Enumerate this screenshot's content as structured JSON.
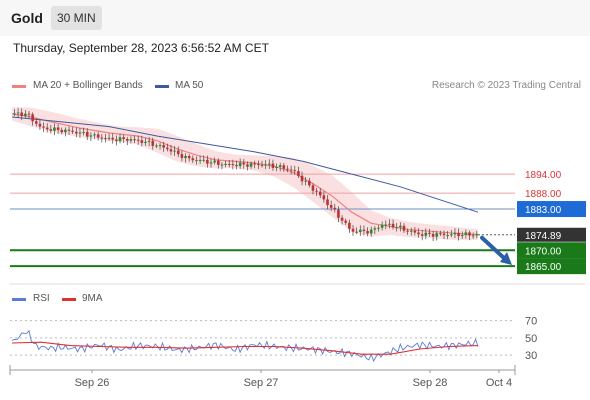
{
  "header": {
    "symbol": "Gold",
    "timeframe": "30 MIN"
  },
  "datetime": "Thursday, September 28, 2023 6:56:52 AM CET",
  "legend": {
    "ma20_label": "MA 20 + Bollinger Bands",
    "ma50_label": "MA 50",
    "copyright": "Research © 2023 Trading Central",
    "rsi_label": "RSI",
    "rsi_ma_label": "9MA"
  },
  "colors": {
    "ma20": "#f08080",
    "ma50": "#3d5a9e",
    "band": "#fadadd",
    "resistance": "#dd3333",
    "pivot": "#1e6bd6",
    "support": "#1a7a1a",
    "last": "#333333",
    "rsi": "#5a7bd8",
    "rsi_ma": "#e03030",
    "up": "#2a8a2a",
    "down": "#c03030"
  },
  "chart_data": [
    {
      "type": "candlestick",
      "title": "Gold",
      "timeframe": "30 MIN",
      "x_ticks": [
        "Sep 26",
        "Sep 27",
        "Sep 28",
        "Oct 4"
      ],
      "ylim": [
        1860,
        1918
      ],
      "series": [
        {
          "name": "Price",
          "x": [
            0,
            3,
            6,
            9,
            12,
            14,
            17,
            20,
            24,
            28,
            32,
            36,
            40,
            44,
            48,
            52,
            56,
            58,
            60,
            63,
            66,
            70,
            74,
            76,
            78,
            80,
            84,
            88,
            92,
            96
          ],
          "values": [
            1913,
            1913,
            1908.5,
            1908,
            1907.5,
            1907,
            1906,
            1905,
            1905,
            1904,
            1902,
            1899,
            1898,
            1897,
            1897,
            1897,
            1896,
            1895,
            1892,
            1888,
            1883,
            1876,
            1876,
            1878,
            1878,
            1877,
            1875,
            1875,
            1875,
            1874.89
          ]
        },
        {
          "name": "MA 20 + Bollinger Bands",
          "x": [
            0,
            4,
            8,
            14,
            20,
            26,
            30,
            34,
            38,
            42,
            46,
            50,
            54,
            58,
            62,
            66,
            70,
            74,
            78,
            82,
            86,
            90,
            94,
            96
          ],
          "values": [
            1913,
            1912,
            1910.5,
            1908.5,
            1907,
            1906,
            1904.5,
            1902,
            1900,
            1898.5,
            1898,
            1897.5,
            1896.5,
            1894.5,
            1891,
            1887,
            1882,
            1878.5,
            1877.5,
            1876.5,
            1876,
            1875.5,
            1875,
            1875
          ]
        },
        {
          "name": "MA 50",
          "x": [
            0,
            10,
            20,
            30,
            40,
            50,
            60,
            70,
            80,
            90,
            96
          ],
          "values": [
            1912,
            1910.5,
            1909,
            1906,
            1903.5,
            1901,
            1898,
            1894,
            1890,
            1885,
            1882
          ]
        }
      ],
      "levels": [
        {
          "value": 1894.0,
          "label": "1894.00",
          "kind": "resistance"
        },
        {
          "value": 1888.0,
          "label": "1888.00",
          "kind": "resistance"
        },
        {
          "value": 1883.0,
          "label": "1883.00",
          "kind": "pivot"
        },
        {
          "value": 1874.89,
          "label": "1874.89",
          "kind": "last"
        },
        {
          "value": 1870.0,
          "label": "1870.00",
          "kind": "support"
        },
        {
          "value": 1865.0,
          "label": "1865.00",
          "kind": "support"
        }
      ],
      "forecast_arrow": {
        "from": 1874.89,
        "to": 1866,
        "direction": "down"
      }
    },
    {
      "type": "line",
      "title": "RSI",
      "ylim": [
        15,
        80
      ],
      "y_ticks": [
        "70",
        "50",
        "30"
      ],
      "series": [
        {
          "name": "RSI",
          "x": [
            0,
            3,
            5,
            8,
            10,
            14,
            18,
            22,
            26,
            30,
            34,
            38,
            42,
            46,
            50,
            54,
            58,
            62,
            66,
            70,
            74,
            76,
            80,
            84,
            88,
            92,
            96
          ],
          "values": [
            45,
            58,
            40,
            38,
            39,
            37,
            42,
            36,
            41,
            40,
            36,
            38,
            42,
            36,
            42,
            40,
            38,
            37,
            34,
            32,
            26,
            30,
            38,
            42,
            40,
            42,
            44
          ]
        },
        {
          "name": "9MA",
          "x": [
            0,
            6,
            12,
            18,
            24,
            30,
            36,
            42,
            48,
            54,
            60,
            66,
            72,
            78,
            84,
            90,
            96
          ],
          "values": [
            44,
            45,
            41,
            40,
            39,
            39,
            38,
            39,
            40,
            40,
            38,
            35,
            31,
            31,
            37,
            40,
            41
          ]
        }
      ]
    }
  ]
}
